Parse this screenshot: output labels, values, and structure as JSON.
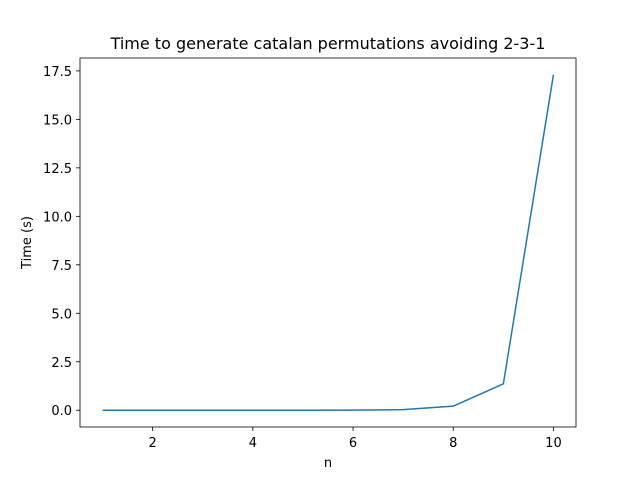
{
  "chart_data": {
    "type": "line",
    "title": "Time to generate catalan permutations avoiding 2-3-1",
    "xlabel": "n",
    "ylabel": "Time (s)",
    "xlim": [
      0.55,
      10.45
    ],
    "ylim": [
      -0.865,
      18.165
    ],
    "x_ticks": [
      2,
      4,
      6,
      8,
      10
    ],
    "x_tick_labels": [
      "2",
      "4",
      "6",
      "8",
      "10"
    ],
    "y_ticks": [
      0.0,
      2.5,
      5.0,
      7.5,
      10.0,
      12.5,
      15.0,
      17.5
    ],
    "y_tick_labels": [
      "0.0",
      "2.5",
      "5.0",
      "7.5",
      "10.0",
      "12.5",
      "15.0",
      "17.5"
    ],
    "grid": false,
    "series": [
      {
        "color": "#1f77b4",
        "x": [
          1,
          2,
          3,
          4,
          5,
          6,
          7,
          8,
          9,
          10
        ],
        "y": [
          0.0,
          0.0,
          0.0,
          0.0,
          0.001,
          0.005,
          0.03,
          0.21,
          1.36,
          17.3
        ]
      }
    ]
  }
}
